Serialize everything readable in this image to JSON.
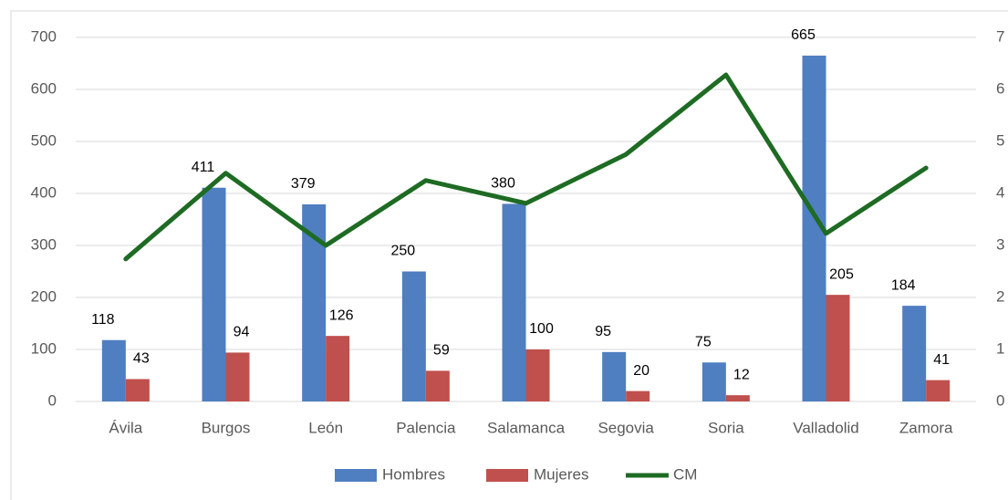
{
  "chart_data": {
    "type": "bar",
    "categories": [
      "Ávila",
      "Burgos",
      "León",
      "Palencia",
      "Salamanca",
      "Segovia",
      "Soria",
      "Valladolid",
      "Zamora"
    ],
    "series": [
      {
        "name": "Hombres",
        "color": "#4f7ec1",
        "values": [
          118,
          411,
          379,
          250,
          380,
          95,
          75,
          665,
          184
        ]
      },
      {
        "name": "Mujeres",
        "color": "#c0504d",
        "values": [
          43,
          94,
          126,
          59,
          100,
          20,
          12,
          205,
          41
        ]
      },
      {
        "name": "CM",
        "color": "#1e6b23",
        "type": "line",
        "axis": "y2",
        "values": [
          2.74,
          4.39,
          3.0,
          4.25,
          3.81,
          4.75,
          6.28,
          3.23,
          4.49
        ]
      }
    ],
    "ylim": [
      0,
      700
    ],
    "yticks": [
      0,
      100,
      200,
      300,
      400,
      500,
      600,
      700
    ],
    "y2lim": [
      0,
      7
    ],
    "y2ticks": [
      0,
      1,
      2,
      3,
      4,
      5,
      6,
      7
    ],
    "grid": true,
    "legend": "bottom"
  }
}
